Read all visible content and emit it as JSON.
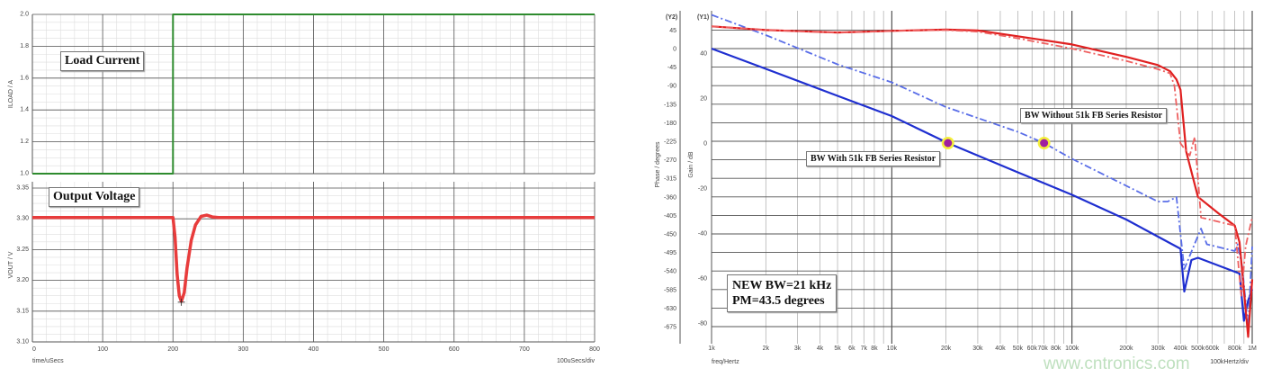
{
  "chart_data": [
    {
      "type": "line",
      "title": "",
      "panels": [
        {
          "annotation": "Load Current",
          "ylabel": "ILOAD / A",
          "ylim": [
            1.0,
            2.0
          ],
          "yticks": [
            "1.0",
            "1.2",
            "1.4",
            "1.6",
            "1.8",
            "2.0"
          ],
          "color": "#2e8b2e",
          "x": [
            0,
            200,
            200,
            800
          ],
          "y": [
            1.0,
            1.0,
            2.0,
            2.0
          ]
        },
        {
          "annotation": "Output Voltage",
          "ylabel": "VOUT / V",
          "ylim": [
            3.1,
            3.35
          ],
          "yticks": [
            "3.10",
            "3.15",
            "3.20",
            "3.25",
            "3.30",
            "3.35"
          ],
          "color": "#e83c3c",
          "x": [
            0,
            200,
            203,
            206,
            209,
            212,
            216,
            220,
            226,
            232,
            240,
            248,
            256,
            265,
            800
          ],
          "y": [
            3.302,
            3.302,
            3.27,
            3.21,
            3.175,
            3.166,
            3.18,
            3.22,
            3.265,
            3.29,
            3.304,
            3.306,
            3.303,
            3.302,
            3.302
          ]
        }
      ],
      "xlabel": "time/uSecs",
      "xlabel_right": "100uSecs/div",
      "xlim": [
        0,
        800
      ],
      "xticks": [
        "0",
        "100",
        "200",
        "300",
        "400",
        "500",
        "600",
        "700",
        "800"
      ],
      "grid": true
    },
    {
      "type": "line",
      "title": "",
      "xscale": "log",
      "xlim": [
        1000,
        1000000
      ],
      "xlabel": "freq/Hertz",
      "xlabel_right": "100kHertz/div",
      "xticks": [
        {
          "value": 1000,
          "label": "1k"
        },
        {
          "value": 2000,
          "label": "2k"
        },
        {
          "value": 3000,
          "label": "3k"
        },
        {
          "value": 4000,
          "label": "4k"
        },
        {
          "value": 5000,
          "label": "5k"
        },
        {
          "value": 6000,
          "label": "6k"
        },
        {
          "value": 7000,
          "label": "7k"
        },
        {
          "value": 8000,
          "label": "8k"
        },
        {
          "value": 10000,
          "label": "10k"
        },
        {
          "value": 20000,
          "label": "20k"
        },
        {
          "value": 30000,
          "label": "30k"
        },
        {
          "value": 40000,
          "label": "40k"
        },
        {
          "value": 50000,
          "label": "50k"
        },
        {
          "value": 60000,
          "label": "60k"
        },
        {
          "value": 70000,
          "label": "70k"
        },
        {
          "value": 80000,
          "label": "80k"
        },
        {
          "value": 100000,
          "label": "100k"
        },
        {
          "value": 200000,
          "label": "200k"
        },
        {
          "value": 300000,
          "label": "300k"
        },
        {
          "value": 400000,
          "label": "400k"
        },
        {
          "value": 500000,
          "label": "500k"
        },
        {
          "value": 600000,
          "label": "600k"
        },
        {
          "value": 800000,
          "label": "800k"
        },
        {
          "value": 1000000,
          "label": "1M"
        }
      ],
      "y2": {
        "tag": "(Y2)",
        "label": "Phase / degrees",
        "ylim": [
          -720,
          45
        ],
        "ticks": [
          "45",
          "0",
          "-45",
          "-90",
          "-135",
          "-180",
          "-225",
          "-270",
          "-315",
          "-360",
          "-405",
          "-450",
          "-495",
          "-540",
          "-585",
          "-630",
          "-675"
        ]
      },
      "y1": {
        "tag": "(Y1)",
        "label": "Gain / dB",
        "ylim": [
          -88,
          60
        ],
        "ticks": [
          "40",
          "20",
          "0",
          "-20",
          "-40",
          "-60",
          "-80"
        ]
      },
      "grid": true,
      "series": [
        {
          "axis": "gain",
          "style": "solid",
          "color": "#1f2fd0",
          "x": [
            1000,
            2000,
            5000,
            10000,
            20500,
            50000,
            100000,
            200000,
            400000,
            420000,
            460000,
            500000,
            850000,
            900000,
            950000,
            1000000
          ],
          "y": [
            42,
            33,
            21,
            12,
            0,
            -13,
            -23,
            -34,
            -47,
            -66,
            -52,
            -51,
            -58,
            -79,
            -70,
            -65
          ]
        },
        {
          "axis": "gain",
          "style": "dashdot",
          "color": "#5a6ee8",
          "x": [
            1000,
            2000,
            5000,
            10000,
            20000,
            50000,
            70000,
            100000,
            200000,
            300000,
            340000,
            380000,
            420000,
            520000,
            560000,
            800000,
            830000,
            880000,
            950000,
            1000000
          ],
          "y": [
            57,
            48,
            35,
            27,
            16,
            5,
            0,
            -7,
            -19,
            -26,
            -26,
            -24,
            -56,
            -38,
            -45,
            -48,
            -45,
            -55,
            -82,
            -46
          ]
        },
        {
          "axis": "phase",
          "style": "solid",
          "color": "#e02020",
          "x": [
            1000,
            2000,
            5000,
            10000,
            20000,
            30000,
            50000,
            100000,
            200000,
            300000,
            350000,
            380000,
            400000,
            430000,
            500000,
            650000,
            800000,
            850000,
            950000,
            1000000
          ],
          "y": [
            54,
            45,
            39,
            43,
            46,
            44,
            30,
            10,
            -20,
            -40,
            -55,
            -75,
            -100,
            -250,
            -360,
            -400,
            -430,
            -470,
            -700,
            -560
          ]
        },
        {
          "axis": "phase",
          "style": "dashdot",
          "color": "#ee6060",
          "x": [
            1000,
            2000,
            5000,
            10000,
            20000,
            30000,
            50000,
            100000,
            200000,
            300000,
            350000,
            370000,
            400000,
            450000,
            480000,
            520000,
            800000,
            870000,
            920000,
            1000000
          ],
          "y": [
            54,
            45,
            39,
            43,
            45,
            41,
            25,
            0,
            -30,
            -50,
            -60,
            -90,
            -230,
            -260,
            -215,
            -410,
            -430,
            -600,
            -480,
            -410
          ]
        }
      ],
      "markers": [
        {
          "x": 20500,
          "y": 0,
          "label": "BW With 51k FB Series Resistor"
        },
        {
          "x": 70000,
          "y": 0,
          "label": "BW Without 51k FB Series Resistor"
        }
      ],
      "annotation_lines": [
        "NEW BW=21 kHz",
        "PM=43.5 degrees"
      ]
    }
  ],
  "watermark": "www.cntronics.com"
}
